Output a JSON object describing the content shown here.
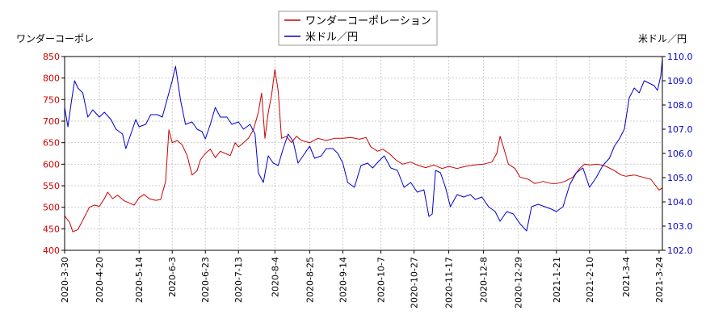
{
  "chart_data": {
    "type": "line",
    "left_axis_label": "ワンダーコーポレ",
    "right_axis_label": "米ドル／円",
    "left_ylim": [
      400,
      850
    ],
    "left_ticks": [
      "400",
      "450",
      "500",
      "550",
      "600",
      "650",
      "700",
      "750",
      "800",
      "850"
    ],
    "right_ylim": [
      102.0,
      110.0
    ],
    "right_ticks": [
      "102.0",
      "103.0",
      "104.0",
      "105.0",
      "106.0",
      "107.0",
      "108.0",
      "109.0",
      "110.0"
    ],
    "x_start": "2020-03-30",
    "x_end": "2021-03-26",
    "x_ticks": [
      "2020-3-30",
      "2020-4-20",
      "2020-5-14",
      "2020-6-3",
      "2020-6-23",
      "2020-7-13",
      "2020-8-4",
      "2020-8-25",
      "2020-9-14",
      "2020-10-7",
      "2020-10-27",
      "2020-11-17",
      "2020-12-8",
      "2020-12-29",
      "2021-1-21",
      "2021-2-10",
      "2021-3-4",
      "2021-3-24"
    ],
    "legend_position": "top-center",
    "grid": true,
    "series": [
      {
        "name": "ワンダーコーポレーション",
        "axis": "left",
        "color": "#cc0000",
        "points": [
          [
            "2020-03-30",
            480
          ],
          [
            "2020-04-02",
            465
          ],
          [
            "2020-04-04",
            443
          ],
          [
            "2020-04-07",
            448
          ],
          [
            "2020-04-10",
            470
          ],
          [
            "2020-04-14",
            500
          ],
          [
            "2020-04-17",
            505
          ],
          [
            "2020-04-20",
            502
          ],
          [
            "2020-04-23",
            520
          ],
          [
            "2020-04-25",
            535
          ],
          [
            "2020-04-28",
            520
          ],
          [
            "2020-05-01",
            528
          ],
          [
            "2020-05-05",
            515
          ],
          [
            "2020-05-08",
            510
          ],
          [
            "2020-05-11",
            505
          ],
          [
            "2020-05-14",
            522
          ],
          [
            "2020-05-17",
            530
          ],
          [
            "2020-05-20",
            520
          ],
          [
            "2020-05-24",
            516
          ],
          [
            "2020-05-27",
            518
          ],
          [
            "2020-05-30",
            560
          ],
          [
            "2020-06-01",
            680
          ],
          [
            "2020-06-03",
            650
          ],
          [
            "2020-06-06",
            655
          ],
          [
            "2020-06-09",
            645
          ],
          [
            "2020-06-12",
            620
          ],
          [
            "2020-06-15",
            575
          ],
          [
            "2020-06-18",
            585
          ],
          [
            "2020-06-20",
            610
          ],
          [
            "2020-06-23",
            625
          ],
          [
            "2020-06-26",
            635
          ],
          [
            "2020-06-29",
            615
          ],
          [
            "2020-07-02",
            630
          ],
          [
            "2020-07-05",
            625
          ],
          [
            "2020-07-08",
            620
          ],
          [
            "2020-07-11",
            650
          ],
          [
            "2020-07-13",
            640
          ],
          [
            "2020-07-16",
            650
          ],
          [
            "2020-07-19",
            660
          ],
          [
            "2020-07-22",
            680
          ],
          [
            "2020-07-25",
            720
          ],
          [
            "2020-07-27",
            765
          ],
          [
            "2020-07-29",
            660
          ],
          [
            "2020-07-31",
            720
          ],
          [
            "2020-08-02",
            760
          ],
          [
            "2020-08-04",
            820
          ],
          [
            "2020-08-06",
            770
          ],
          [
            "2020-08-08",
            660
          ],
          [
            "2020-08-11",
            665
          ],
          [
            "2020-08-14",
            650
          ],
          [
            "2020-08-17",
            665
          ],
          [
            "2020-08-20",
            655
          ],
          [
            "2020-08-25",
            650
          ],
          [
            "2020-08-30",
            660
          ],
          [
            "2020-09-04",
            655
          ],
          [
            "2020-09-09",
            660
          ],
          [
            "2020-09-14",
            660
          ],
          [
            "2020-09-19",
            662
          ],
          [
            "2020-09-24",
            658
          ],
          [
            "2020-09-28",
            662
          ],
          [
            "2020-10-01",
            640
          ],
          [
            "2020-10-05",
            630
          ],
          [
            "2020-10-08",
            635
          ],
          [
            "2020-10-12",
            625
          ],
          [
            "2020-10-16",
            610
          ],
          [
            "2020-10-20",
            600
          ],
          [
            "2020-10-25",
            605
          ],
          [
            "2020-10-29",
            598
          ],
          [
            "2020-11-03",
            592
          ],
          [
            "2020-11-08",
            598
          ],
          [
            "2020-11-13",
            590
          ],
          [
            "2020-11-17",
            595
          ],
          [
            "2020-11-22",
            590
          ],
          [
            "2020-11-27",
            595
          ],
          [
            "2020-12-02",
            598
          ],
          [
            "2020-12-08",
            600
          ],
          [
            "2020-12-13",
            605
          ],
          [
            "2020-12-16",
            625
          ],
          [
            "2020-12-18",
            665
          ],
          [
            "2020-12-20",
            640
          ],
          [
            "2020-12-23",
            600
          ],
          [
            "2020-12-27",
            590
          ],
          [
            "2020-12-30",
            570
          ],
          [
            "2021-01-04",
            565
          ],
          [
            "2021-01-08",
            555
          ],
          [
            "2021-01-13",
            560
          ],
          [
            "2021-01-18",
            555
          ],
          [
            "2021-01-21",
            555
          ],
          [
            "2021-01-26",
            560
          ],
          [
            "2021-01-31",
            570
          ],
          [
            "2021-02-04",
            590
          ],
          [
            "2021-02-07",
            600
          ],
          [
            "2021-02-10",
            598
          ],
          [
            "2021-02-15",
            600
          ],
          [
            "2021-02-20",
            595
          ],
          [
            "2021-02-25",
            585
          ],
          [
            "2021-03-01",
            575
          ],
          [
            "2021-03-04",
            572
          ],
          [
            "2021-03-09",
            575
          ],
          [
            "2021-03-14",
            570
          ],
          [
            "2021-03-19",
            565
          ],
          [
            "2021-03-22",
            550
          ],
          [
            "2021-03-24",
            540
          ],
          [
            "2021-03-26",
            545
          ]
        ]
      },
      {
        "name": "米ドル／円",
        "axis": "right",
        "color": "#0000cc",
        "points": [
          [
            "2020-03-30",
            107.9
          ],
          [
            "2020-04-01",
            107.1
          ],
          [
            "2020-04-03",
            108.1
          ],
          [
            "2020-04-05",
            109.0
          ],
          [
            "2020-04-07",
            108.7
          ],
          [
            "2020-04-10",
            108.5
          ],
          [
            "2020-04-13",
            107.5
          ],
          [
            "2020-04-16",
            107.8
          ],
          [
            "2020-04-20",
            107.5
          ],
          [
            "2020-04-23",
            107.7
          ],
          [
            "2020-04-27",
            107.4
          ],
          [
            "2020-04-30",
            107.0
          ],
          [
            "2020-05-04",
            106.8
          ],
          [
            "2020-05-06",
            106.2
          ],
          [
            "2020-05-09",
            106.8
          ],
          [
            "2020-05-12",
            107.4
          ],
          [
            "2020-05-14",
            107.1
          ],
          [
            "2020-05-18",
            107.2
          ],
          [
            "2020-05-21",
            107.6
          ],
          [
            "2020-05-25",
            107.6
          ],
          [
            "2020-05-28",
            107.5
          ],
          [
            "2020-06-01",
            108.5
          ],
          [
            "2020-06-03",
            109.0
          ],
          [
            "2020-06-05",
            109.6
          ],
          [
            "2020-06-08",
            108.2
          ],
          [
            "2020-06-11",
            107.2
          ],
          [
            "2020-06-15",
            107.3
          ],
          [
            "2020-06-18",
            107.0
          ],
          [
            "2020-06-21",
            106.9
          ],
          [
            "2020-06-23",
            106.6
          ],
          [
            "2020-06-26",
            107.2
          ],
          [
            "2020-06-29",
            107.9
          ],
          [
            "2020-07-02",
            107.5
          ],
          [
            "2020-07-06",
            107.5
          ],
          [
            "2020-07-09",
            107.2
          ],
          [
            "2020-07-13",
            107.3
          ],
          [
            "2020-07-16",
            107.0
          ],
          [
            "2020-07-20",
            107.2
          ],
          [
            "2020-07-23",
            106.8
          ],
          [
            "2020-07-25",
            105.2
          ],
          [
            "2020-07-28",
            104.8
          ],
          [
            "2020-07-31",
            105.9
          ],
          [
            "2020-08-03",
            105.6
          ],
          [
            "2020-08-06",
            105.5
          ],
          [
            "2020-08-09",
            106.2
          ],
          [
            "2020-08-12",
            106.8
          ],
          [
            "2020-08-15",
            106.5
          ],
          [
            "2020-08-18",
            105.6
          ],
          [
            "2020-08-21",
            105.9
          ],
          [
            "2020-08-25",
            106.3
          ],
          [
            "2020-08-28",
            105.8
          ],
          [
            "2020-09-01",
            105.9
          ],
          [
            "2020-09-04",
            106.2
          ],
          [
            "2020-09-08",
            106.2
          ],
          [
            "2020-09-11",
            106.0
          ],
          [
            "2020-09-14",
            105.6
          ],
          [
            "2020-09-17",
            104.8
          ],
          [
            "2020-09-21",
            104.6
          ],
          [
            "2020-09-25",
            105.5
          ],
          [
            "2020-09-29",
            105.6
          ],
          [
            "2020-10-02",
            105.4
          ],
          [
            "2020-10-06",
            105.7
          ],
          [
            "2020-10-09",
            105.9
          ],
          [
            "2020-10-13",
            105.4
          ],
          [
            "2020-10-17",
            105.3
          ],
          [
            "2020-10-21",
            104.6
          ],
          [
            "2020-10-25",
            104.8
          ],
          [
            "2020-10-29",
            104.4
          ],
          [
            "2020-11-02",
            104.5
          ],
          [
            "2020-11-05",
            103.4
          ],
          [
            "2020-11-07",
            103.5
          ],
          [
            "2020-11-09",
            105.3
          ],
          [
            "2020-11-12",
            105.2
          ],
          [
            "2020-11-15",
            104.6
          ],
          [
            "2020-11-18",
            103.8
          ],
          [
            "2020-11-22",
            104.3
          ],
          [
            "2020-11-26",
            104.2
          ],
          [
            "2020-11-30",
            104.3
          ],
          [
            "2020-12-03",
            104.1
          ],
          [
            "2020-12-07",
            104.2
          ],
          [
            "2020-12-11",
            103.8
          ],
          [
            "2020-12-15",
            103.6
          ],
          [
            "2020-12-18",
            103.2
          ],
          [
            "2020-12-22",
            103.6
          ],
          [
            "2020-12-26",
            103.5
          ],
          [
            "2020-12-30",
            103.1
          ],
          [
            "2021-01-03",
            102.8
          ],
          [
            "2021-01-06",
            103.8
          ],
          [
            "2021-01-10",
            103.9
          ],
          [
            "2021-01-14",
            103.8
          ],
          [
            "2021-01-18",
            103.7
          ],
          [
            "2021-01-21",
            103.6
          ],
          [
            "2021-01-25",
            103.8
          ],
          [
            "2021-01-29",
            104.7
          ],
          [
            "2021-02-02",
            105.2
          ],
          [
            "2021-02-06",
            105.4
          ],
          [
            "2021-02-10",
            104.6
          ],
          [
            "2021-02-14",
            105.0
          ],
          [
            "2021-02-18",
            105.5
          ],
          [
            "2021-02-22",
            105.8
          ],
          [
            "2021-02-25",
            106.3
          ],
          [
            "2021-02-28",
            106.6
          ],
          [
            "2021-03-03",
            107.0
          ],
          [
            "2021-03-06",
            108.3
          ],
          [
            "2021-03-09",
            108.7
          ],
          [
            "2021-03-12",
            108.5
          ],
          [
            "2021-03-15",
            109.0
          ],
          [
            "2021-03-18",
            108.9
          ],
          [
            "2021-03-21",
            108.8
          ],
          [
            "2021-03-23",
            108.6
          ],
          [
            "2021-03-25",
            109.2
          ],
          [
            "2021-03-26",
            109.9
          ]
        ]
      }
    ]
  }
}
